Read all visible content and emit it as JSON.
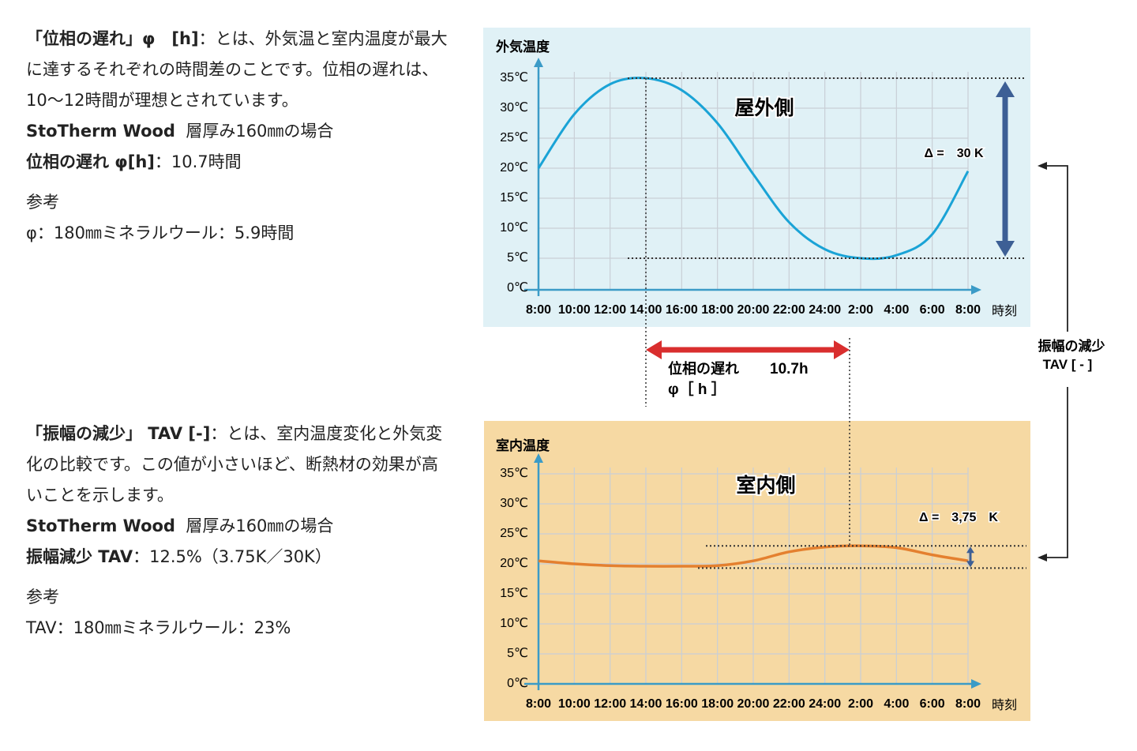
{
  "phase_text": {
    "title_bold": "「位相の遅れ」φ　[h]",
    "title_rest": "：とは、外気温と室内温度が最大に達するそれぞれの時間差のことです。位相の遅れは、10〜12時間が理想とされています。",
    "case_product": "StoTherm Wood",
    "case_rest": "層厚み160㎜の場合",
    "result_bold": "位相の遅れ φ[h]",
    "result_rest": "：10.7時間",
    "ref_label": "参考",
    "ref_text": "φ：180㎜ミネラルウール：5.9時間"
  },
  "tav_text": {
    "title_bold": "「振幅の減少」 TAV [-]",
    "title_rest": "：とは、室内温度変化と外気変化の比較です。この値が小さいほど、断熱材の効果が高いことを示します。",
    "case_product": "StoTherm Wood",
    "case_rest": "層厚み160㎜の場合",
    "result_bold": "振幅減少 TAV",
    "result_rest": "：12.5%（3.75K／30K）",
    "ref_label": "参考",
    "ref_text": "TAV：180㎜ミネラルウール：23%"
  },
  "middle": {
    "phase_label": "位相の遅れ",
    "phase_value": "10.7h",
    "phase_unit": "φ［ h ］",
    "tav_label": "振幅の減少",
    "tav_unit": "TAV [ - ]"
  },
  "colors": {
    "outdoor_bg": "#e0f1f6",
    "indoor_bg": "#f6d9a3",
    "outdoor_line": "#1aa3d6",
    "indoor_line": "#e4802f",
    "axis": "#3b9bc7",
    "delta_arrow": "#3d5f95",
    "phase_arrow": "#d92e2e"
  },
  "chart_data": [
    {
      "type": "line",
      "title": "外気温度",
      "annotation": "屋外側",
      "delta_label": "Δ =　30 K",
      "ylabel": "外気温度",
      "xlabel": "時刻",
      "x_ticks": [
        "8:00",
        "10:00",
        "12:00",
        "14:00",
        "16:00",
        "18:00",
        "20:00",
        "22:00",
        "24:00",
        "2:00",
        "4:00",
        "6:00",
        "8:00"
      ],
      "y_ticks": [
        "0℃",
        "5℃",
        "10℃",
        "15℃",
        "20℃",
        "25℃",
        "30℃",
        "35℃"
      ],
      "ylim": [
        0,
        35
      ],
      "series": [
        {
          "name": "outdoor",
          "values": [
            20,
            29,
            34,
            35,
            33,
            27.5,
            19,
            11,
            6.5,
            5,
            5.5,
            9,
            19.5
          ]
        }
      ],
      "max": 35,
      "min": 5
    },
    {
      "type": "line",
      "title": "室内温度",
      "annotation": "室内側",
      "delta_label": "Δ =　3,75　K",
      "ylabel": "室内温度",
      "xlabel": "時刻",
      "x_ticks": [
        "8:00",
        "10:00",
        "12:00",
        "14:00",
        "16:00",
        "18:00",
        "20:00",
        "22:00",
        "24:00",
        "2:00",
        "4:00",
        "6:00",
        "8:00"
      ],
      "y_ticks": [
        "0℃",
        "5℃",
        "10℃",
        "15℃",
        "20℃",
        "25℃",
        "30℃",
        "35℃"
      ],
      "ylim": [
        0,
        35
      ],
      "series": [
        {
          "name": "indoor",
          "values": [
            20.5,
            20,
            19.7,
            19.6,
            19.6,
            19.7,
            20.5,
            22,
            22.8,
            23,
            22.7,
            21.5,
            20.5
          ]
        }
      ],
      "max": 23,
      "min": 19.3
    }
  ]
}
